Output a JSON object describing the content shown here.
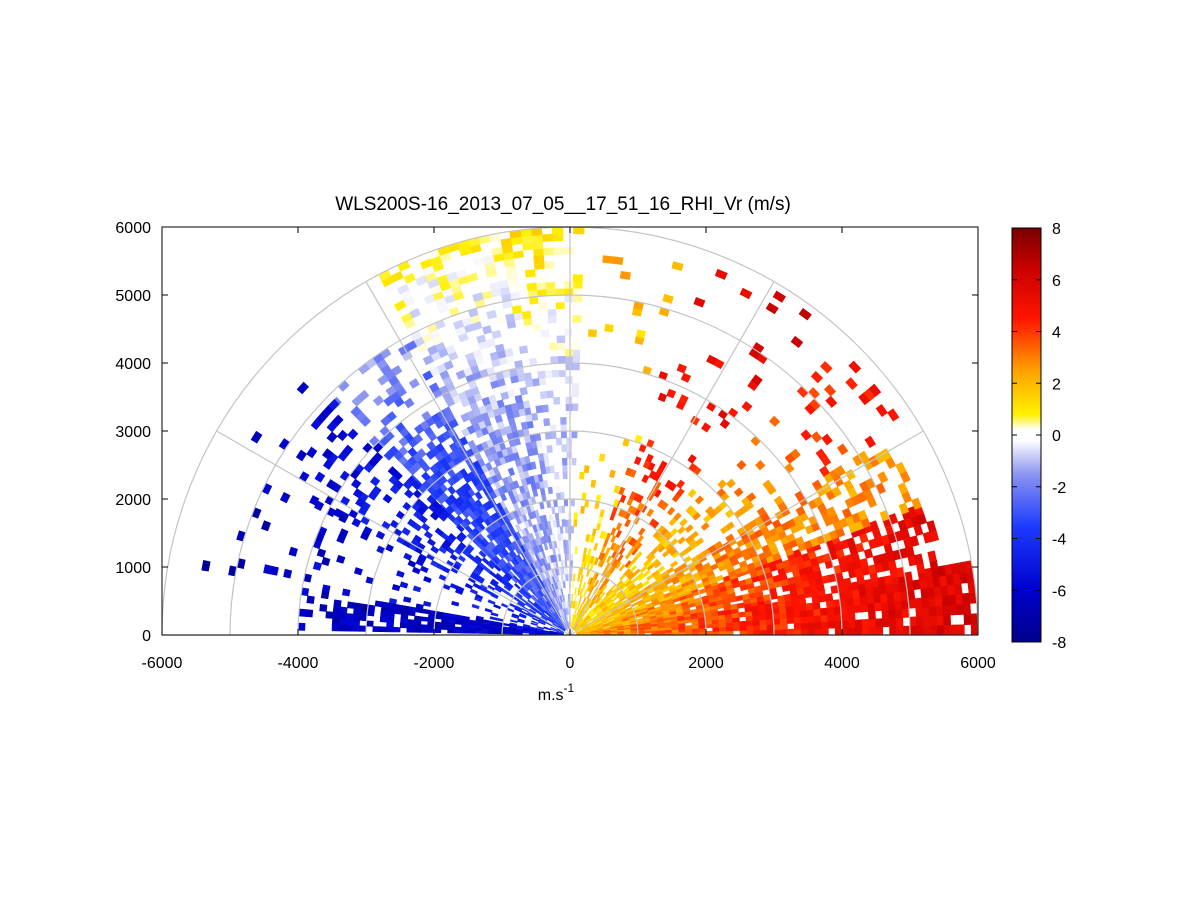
{
  "chart_data": {
    "type": "heatmap",
    "subtype": "polar-rhi-sector",
    "title": "WLS200S-16_2013_07_05__17_51_16_RHI_Vr (m/s)",
    "xlabel_base": "m.s",
    "xlabel_sup": "-1",
    "xlim": [
      -6000,
      6000
    ],
    "ylim": [
      0,
      6000
    ],
    "xticks": [
      -6000,
      -4000,
      -2000,
      0,
      2000,
      4000,
      6000
    ],
    "yticks": [
      0,
      1000,
      2000,
      3000,
      4000,
      5000,
      6000
    ],
    "range_rings": [
      1000,
      2000,
      3000,
      4000,
      5000,
      6000
    ],
    "spoke_angles_deg": [
      0,
      30,
      60,
      90,
      120,
      150,
      180
    ],
    "grid": true,
    "colorbar": {
      "min": -8,
      "max": 8,
      "ticks": [
        8,
        6,
        4,
        2,
        0,
        -2,
        -4,
        -6,
        -8
      ],
      "stops": [
        {
          "v": -8,
          "c": "#00008b"
        },
        {
          "v": -6,
          "c": "#0000cd"
        },
        {
          "v": -3.5,
          "c": "#1e3cff"
        },
        {
          "v": -1.5,
          "c": "#8c96f0"
        },
        {
          "v": -0.2,
          "c": "#ffffff"
        },
        {
          "v": 0.2,
          "c": "#ffffff"
        },
        {
          "v": 0.8,
          "c": "#fff000"
        },
        {
          "v": 2.5,
          "c": "#ffa000"
        },
        {
          "v": 4.5,
          "c": "#ff1400"
        },
        {
          "v": 6.5,
          "c": "#c80000"
        },
        {
          "v": 8,
          "c": "#780000"
        }
      ]
    },
    "sectors": [
      {
        "angles_deg": [
          0,
          10
        ],
        "ranges_m": [
          100,
          6000
        ],
        "vr": [
          2.5,
          4.5,
          6
        ],
        "coverage": [
          1.0,
          0.95,
          0.85
        ]
      },
      {
        "angles_deg": [
          10,
          20
        ],
        "ranges_m": [
          100,
          5600
        ],
        "vr": [
          2.0,
          4.0,
          5.5
        ],
        "coverage": [
          0.95,
          0.85,
          0.55
        ]
      },
      {
        "angles_deg": [
          20,
          32
        ],
        "ranges_m": [
          100,
          5500
        ],
        "vr": [
          1.5,
          3.0,
          2.5
        ],
        "coverage": [
          0.95,
          0.75,
          0.4
        ]
      },
      {
        "angles_deg": [
          32,
          50
        ],
        "ranges_m": [
          100,
          5800
        ],
        "vr": [
          1.2,
          2.5,
          5.0
        ],
        "coverage": [
          0.8,
          0.2,
          0.08
        ]
      },
      {
        "angles_deg": [
          50,
          70
        ],
        "ranges_m": [
          100,
          5900
        ],
        "vr": [
          1.5,
          4.5,
          6.0
        ],
        "coverage": [
          0.6,
          0.1,
          0.05
        ]
      },
      {
        "angles_deg": [
          70,
          88
        ],
        "ranges_m": [
          100,
          5900
        ],
        "vr": [
          1.0,
          1.5,
          2.0
        ],
        "coverage": [
          0.4,
          0.05,
          0.05
        ]
      },
      {
        "angles_deg": [
          88,
          100
        ],
        "ranges_m": [
          100,
          6000
        ],
        "vr": [
          -0.5,
          -1.0,
          1.0
        ],
        "coverage": [
          0.9,
          0.3,
          0.7
        ]
      },
      {
        "angles_deg": [
          100,
          118
        ],
        "ranges_m": [
          100,
          6000
        ],
        "vr": [
          -1.2,
          -1.5,
          0.5
        ],
        "coverage": [
          0.95,
          0.6,
          0.7
        ]
      },
      {
        "angles_deg": [
          118,
          135
        ],
        "ranges_m": [
          100,
          5000
        ],
        "vr": [
          -2.5,
          -3.5,
          -1.5
        ],
        "coverage": [
          0.95,
          0.8,
          0.2
        ]
      },
      {
        "angles_deg": [
          135,
          152
        ],
        "ranges_m": [
          100,
          5500
        ],
        "vr": [
          -3.5,
          -5.0,
          -6.0
        ],
        "coverage": [
          0.6,
          0.35,
          0.05
        ]
      },
      {
        "angles_deg": [
          152,
          170
        ],
        "ranges_m": [
          100,
          5500
        ],
        "vr": [
          -4.5,
          -5.5,
          -7.0
        ],
        "coverage": [
          0.3,
          0.15,
          0.03
        ]
      },
      {
        "angles_deg": [
          170,
          179
        ],
        "ranges_m": [
          100,
          4000
        ],
        "vr": [
          -5.5,
          -6.5,
          -6.5
        ],
        "coverage": [
          0.95,
          0.9,
          0.4
        ]
      }
    ]
  }
}
